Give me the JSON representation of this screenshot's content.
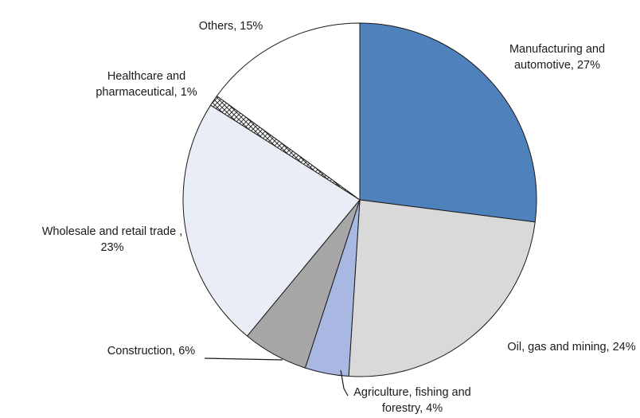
{
  "chart_data": {
    "type": "pie",
    "start": "12 o'clock",
    "direction": "clockwise",
    "slices": [
      {
        "label_lines": [
          "Manufacturing and",
          "automotive, 27%"
        ],
        "value": 27,
        "color": "#4f81bd",
        "pattern": null
      },
      {
        "label_lines": [
          "Oil, gas and mining, 24%"
        ],
        "value": 24,
        "color": "#d9d9d9",
        "pattern": null
      },
      {
        "label_lines": [
          "Agriculture, fishing and",
          "forestry, 4%"
        ],
        "value": 4,
        "color": "#a9b8e3",
        "pattern": null
      },
      {
        "label_lines": [
          "Construction, 6%"
        ],
        "value": 6,
        "color": "#a6a6a6",
        "pattern": null
      },
      {
        "label_lines": [
          "Wholesale and retail trade ,",
          "23%"
        ],
        "value": 23,
        "color": "#e9edf6",
        "pattern": null
      },
      {
        "label_lines": [
          "Healthcare and",
          "pharmaceutical, 1%"
        ],
        "value": 1,
        "color": "#ffffff",
        "pattern": "crosshatch"
      },
      {
        "label_lines": [
          "Others, 15%"
        ],
        "value": 15,
        "color": "#ffffff",
        "pattern": null
      }
    ]
  }
}
